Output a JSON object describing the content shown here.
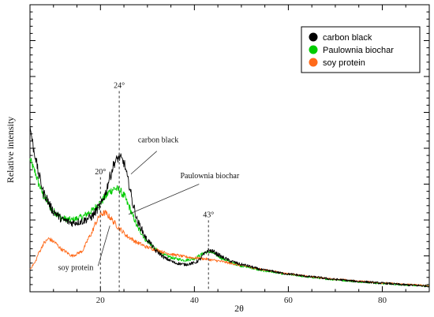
{
  "chart_data": {
    "type": "line",
    "title": "",
    "xlabel": "2θ",
    "ylabel": "Relative intensity",
    "xlim": [
      5,
      90
    ],
    "ylim": [
      0,
      100
    ],
    "x_ticks": [
      20,
      40,
      60,
      80
    ],
    "x_tick_labels": [
      "20",
      "40",
      "60",
      "80"
    ],
    "y_tick_labels_shown": false,
    "grid": false,
    "legend_position": "top-right",
    "series": [
      {
        "name": "carbon black",
        "color": "#000000",
        "points": [
          [
            5,
            57
          ],
          [
            6,
            48
          ],
          [
            7,
            40
          ],
          [
            8,
            34
          ],
          [
            10,
            28
          ],
          [
            12,
            25
          ],
          [
            14,
            24
          ],
          [
            16,
            24.5
          ],
          [
            18,
            26
          ],
          [
            20,
            30
          ],
          [
            21,
            34
          ],
          [
            22,
            40
          ],
          [
            23,
            45
          ],
          [
            24,
            47
          ],
          [
            25,
            45
          ],
          [
            26,
            38
          ],
          [
            27,
            30
          ],
          [
            28,
            24
          ],
          [
            30,
            18
          ],
          [
            32,
            14
          ],
          [
            34,
            11.5
          ],
          [
            36,
            10
          ],
          [
            38,
            9.5
          ],
          [
            40,
            10
          ],
          [
            41,
            11
          ],
          [
            42,
            13
          ],
          [
            43,
            14.5
          ],
          [
            44,
            14
          ],
          [
            45,
            13
          ],
          [
            46,
            12
          ],
          [
            48,
            10.5
          ],
          [
            50,
            9.5
          ],
          [
            55,
            7.5
          ],
          [
            60,
            6.2
          ],
          [
            65,
            5.2
          ],
          [
            70,
            4.3
          ],
          [
            75,
            3.6
          ],
          [
            80,
            3.0
          ],
          [
            85,
            2.4
          ],
          [
            90,
            2.0
          ]
        ]
      },
      {
        "name": "Paulownia biochar",
        "color": "#00cc00",
        "points": [
          [
            5,
            46
          ],
          [
            6,
            42
          ],
          [
            7,
            37
          ],
          [
            8,
            33
          ],
          [
            10,
            28
          ],
          [
            12,
            25.5
          ],
          [
            14,
            25
          ],
          [
            16,
            26
          ],
          [
            18,
            28
          ],
          [
            20,
            31
          ],
          [
            21,
            33
          ],
          [
            22,
            35
          ],
          [
            23,
            36
          ],
          [
            24,
            35.5
          ],
          [
            25,
            33.5
          ],
          [
            26,
            30
          ],
          [
            27,
            26
          ],
          [
            28,
            22
          ],
          [
            30,
            17.5
          ],
          [
            32,
            14.5
          ],
          [
            34,
            12.5
          ],
          [
            36,
            11.5
          ],
          [
            38,
            11
          ],
          [
            40,
            11.5
          ],
          [
            41,
            12.5
          ],
          [
            42,
            13.5
          ],
          [
            43,
            14
          ],
          [
            44,
            13.5
          ],
          [
            45,
            12.5
          ],
          [
            46,
            11.5
          ],
          [
            48,
            10
          ],
          [
            50,
            9
          ],
          [
            55,
            7.2
          ],
          [
            60,
            6
          ],
          [
            65,
            5
          ],
          [
            70,
            4.2
          ],
          [
            75,
            3.5
          ],
          [
            80,
            2.9
          ],
          [
            85,
            2.4
          ],
          [
            90,
            2.0
          ]
        ]
      },
      {
        "name": "soy protein",
        "color": "#ff6a1a",
        "points": [
          [
            5,
            8
          ],
          [
            6,
            10
          ],
          [
            7,
            14
          ],
          [
            8,
            17
          ],
          [
            9,
            18.5
          ],
          [
            10,
            17.5
          ],
          [
            12,
            14.5
          ],
          [
            14,
            12.5
          ],
          [
            16,
            14
          ],
          [
            18,
            20
          ],
          [
            19,
            24
          ],
          [
            20,
            27
          ],
          [
            21,
            27.5
          ],
          [
            22,
            26
          ],
          [
            23,
            24
          ],
          [
            24,
            22
          ],
          [
            26,
            19
          ],
          [
            28,
            17
          ],
          [
            30,
            15.5
          ],
          [
            32,
            14.5
          ],
          [
            34,
            13.5
          ],
          [
            36,
            12.8
          ],
          [
            38,
            12.2
          ],
          [
            40,
            11.8
          ],
          [
            42,
            11.5
          ],
          [
            44,
            11
          ],
          [
            46,
            10.5
          ],
          [
            48,
            9.8
          ],
          [
            50,
            9.2
          ],
          [
            55,
            7.6
          ],
          [
            60,
            6.3
          ],
          [
            65,
            5.2
          ],
          [
            70,
            4.4
          ],
          [
            75,
            3.7
          ],
          [
            80,
            3.1
          ],
          [
            85,
            2.6
          ],
          [
            90,
            2.1
          ]
        ]
      }
    ],
    "annotations": [
      {
        "text": "24°",
        "x": 24,
        "y": 50,
        "marker_top": 71
      },
      {
        "text": "20°",
        "x": 20,
        "y": 32,
        "marker_top": 41
      },
      {
        "text": "43°",
        "x": 43,
        "y": 15.5,
        "marker_top": 26
      },
      {
        "text": "carbon black"
      },
      {
        "text": "Paulownia biochar"
      },
      {
        "text": "soy protein"
      }
    ]
  },
  "colors": {
    "carbon_black": "#000000",
    "paulownia_biochar": "#00cc00",
    "soy_protein": "#ff6a1a"
  }
}
